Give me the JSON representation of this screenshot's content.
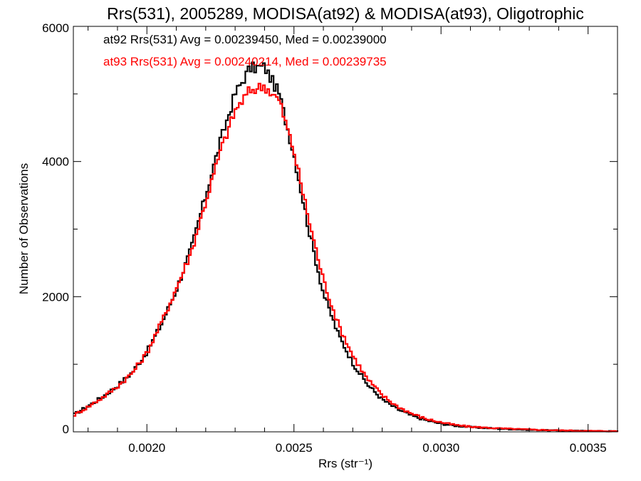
{
  "chart_data": {
    "type": "line",
    "step": true,
    "title": "Rrs(531), 2005289, MODISA(at92) & MODISA(at93), Oligotrophic",
    "xlabel": "Rrs (str⁻¹)",
    "ylabel": "Number of Observations",
    "xlim": [
      0.00175,
      0.0036
    ],
    "ylim": [
      0,
      6000
    ],
    "x_ticks": [
      0.002,
      0.0025,
      0.003,
      0.0035
    ],
    "x_tick_labels": [
      "0.0020",
      "0.0025",
      "0.0030",
      "0.0035"
    ],
    "y_ticks": [
      0,
      2000,
      4000,
      6000
    ],
    "y_tick_labels": [
      "0",
      "2000",
      "4000",
      "6000"
    ],
    "x_minor_step": 0.0001,
    "y_minor_step": 1000,
    "grid": false,
    "legend_placement": "top-left",
    "x": [
      0.00175,
      0.0018,
      0.00185,
      0.0019,
      0.00195,
      0.002,
      0.00205,
      0.0021,
      0.00215,
      0.0022,
      0.00225,
      0.0023,
      0.00235,
      0.0024,
      0.00245,
      0.0025,
      0.00255,
      0.0026,
      0.00265,
      0.0027,
      0.00275,
      0.0028,
      0.00285,
      0.0029,
      0.00295,
      0.003,
      0.00305,
      0.0031,
      0.0032,
      0.0033,
      0.0034,
      0.0035,
      0.0036
    ],
    "series": [
      {
        "name": "at92",
        "label": "at92 Rrs(531) Avg = 0.00239450, Med = 0.00239000",
        "color": "#000000",
        "values": [
          250,
          380,
          520,
          680,
          880,
          1180,
          1600,
          2100,
          2700,
          3500,
          4300,
          5000,
          5380,
          5400,
          5000,
          4100,
          3000,
          2050,
          1450,
          1020,
          700,
          480,
          340,
          240,
          170,
          120,
          90,
          70,
          45,
          30,
          20,
          12,
          8
        ]
      },
      {
        "name": "at93",
        "label": "at93 Rrs(531) Avg = 0.00240214, Med = 0.00239735",
        "color": "#ff0000",
        "values": [
          240,
          370,
          510,
          670,
          870,
          1170,
          1620,
          2120,
          2650,
          3400,
          4150,
          4750,
          5050,
          5120,
          4900,
          4150,
          3150,
          2250,
          1600,
          1130,
          780,
          540,
          380,
          270,
          190,
          140,
          100,
          75,
          50,
          34,
          22,
          14,
          9
        ]
      }
    ]
  }
}
